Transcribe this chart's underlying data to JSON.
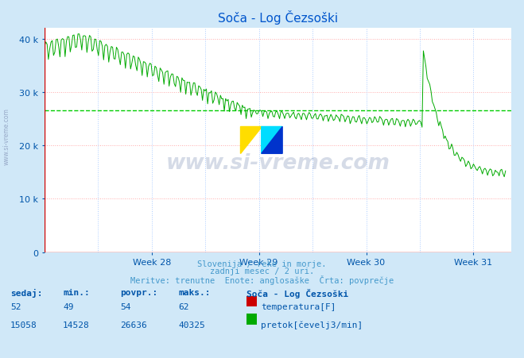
{
  "title": "Soča - Log Čezsoški",
  "title_color": "#0055cc",
  "bg_color": "#d0e8f8",
  "plot_bg_color": "#ffffff",
  "line_color": "#00aa00",
  "avg_line_color": "#00cc00",
  "avg_value": 26636,
  "ymin": 0,
  "ymax": 42000,
  "yticks": [
    0,
    10000,
    20000,
    30000,
    40000
  ],
  "ytick_labels": [
    "0",
    "10 k",
    "20 k",
    "30 k",
    "40 k"
  ],
  "grid_color_h": "#ffaaaa",
  "grid_color_v": "#aaccff",
  "axis_color": "#cc0000",
  "week_labels": [
    "Week 28",
    "Week 29",
    "Week 30",
    "Week 31"
  ],
  "footnote1": "Slovenija / reke in morje.",
  "footnote2": "zadnji mesec / 2 uri.",
  "footnote3": "Meritve: trenutne  Enote: anglosaške  Črta: povprečje",
  "footnote_color": "#4499cc",
  "table_label_color": "#0055aa",
  "sedaj": 15058,
  "min_val": 14528,
  "povpr": 26636,
  "maks": 40325,
  "sedaj_temp": 52,
  "min_temp": 49,
  "povpr_temp": 54,
  "maks_temp": 62,
  "legend_title": "Soča - Log Čezsoški",
  "temp_color": "#cc0000",
  "pretok_color": "#00aa00",
  "watermark_color": "#1a3a7a",
  "watermark_alpha": 0.18,
  "n_points": 360,
  "spike_t": 0.08,
  "drop_t": 0.82,
  "final_val": 15000
}
